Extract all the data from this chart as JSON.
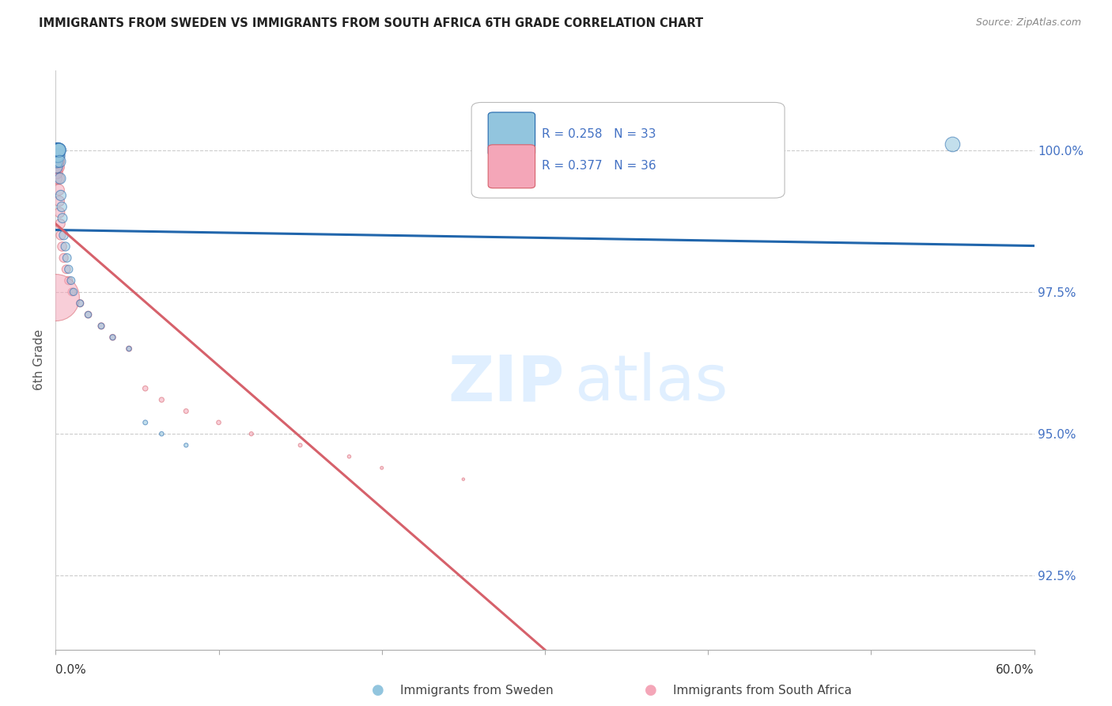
{
  "title": "IMMIGRANTS FROM SWEDEN VS IMMIGRANTS FROM SOUTH AFRICA 6TH GRADE CORRELATION CHART",
  "source": "Source: ZipAtlas.com",
  "ylabel": "6th Grade",
  "xlim": [
    0.0,
    60.0
  ],
  "ylim": [
    91.2,
    101.4
  ],
  "y_ticks": [
    92.5,
    95.0,
    97.5,
    100.0
  ],
  "y_tick_labels": [
    "92.5%",
    "95.0%",
    "97.5%",
    "100.0%"
  ],
  "legend_r_sweden": "0.258",
  "legend_n_sweden": "33",
  "legend_r_southafrica": "0.377",
  "legend_n_southafrica": "36",
  "color_sweden": "#92c5de",
  "color_southafrica": "#f4a6b8",
  "trendline_color_sweden": "#2166ac",
  "trendline_color_southafrica": "#d6616b",
  "sweden_x": [
    0.05,
    0.07,
    0.08,
    0.1,
    0.11,
    0.12,
    0.13,
    0.14,
    0.15,
    0.17,
    0.18,
    0.2,
    0.22,
    0.25,
    0.28,
    0.32,
    0.38,
    0.42,
    0.5,
    0.6,
    0.7,
    0.8,
    0.95,
    1.1,
    1.5,
    2.0,
    2.8,
    3.5,
    4.5,
    5.5,
    6.5,
    8.0,
    55.0
  ],
  "sweden_y": [
    99.7,
    99.8,
    99.9,
    100.0,
    100.0,
    100.0,
    100.0,
    99.9,
    99.9,
    100.0,
    100.0,
    100.0,
    100.0,
    99.8,
    99.5,
    99.2,
    99.0,
    98.8,
    98.5,
    98.3,
    98.1,
    97.9,
    97.7,
    97.5,
    97.3,
    97.1,
    96.9,
    96.7,
    96.5,
    95.2,
    95.0,
    94.8,
    100.1
  ],
  "sweden_sizes": [
    120,
    130,
    140,
    160,
    170,
    180,
    150,
    140,
    160,
    150,
    170,
    160,
    150,
    120,
    100,
    90,
    80,
    75,
    70,
    65,
    60,
    55,
    50,
    45,
    40,
    35,
    30,
    25,
    20,
    18,
    16,
    14,
    180
  ],
  "sa_x": [
    0.05,
    0.07,
    0.09,
    0.1,
    0.11,
    0.12,
    0.13,
    0.14,
    0.15,
    0.17,
    0.18,
    0.2,
    0.22,
    0.25,
    0.28,
    0.32,
    0.4,
    0.5,
    0.65,
    0.8,
    1.0,
    1.5,
    2.0,
    2.8,
    3.5,
    4.5,
    5.5,
    6.5,
    8.0,
    10.0,
    12.0,
    15.0,
    18.0,
    20.0,
    25.0,
    0.03
  ],
  "sa_y": [
    99.5,
    99.6,
    99.7,
    99.8,
    99.8,
    99.9,
    100.0,
    99.9,
    99.8,
    99.7,
    99.5,
    99.3,
    99.1,
    98.9,
    98.7,
    98.5,
    98.3,
    98.1,
    97.9,
    97.7,
    97.5,
    97.3,
    97.1,
    96.9,
    96.7,
    96.5,
    95.8,
    95.6,
    95.4,
    95.2,
    95.0,
    94.8,
    94.6,
    94.4,
    94.2,
    97.4
  ],
  "sa_sizes": [
    110,
    120,
    130,
    140,
    150,
    160,
    150,
    140,
    130,
    120,
    110,
    100,
    90,
    85,
    80,
    75,
    70,
    65,
    60,
    55,
    50,
    45,
    40,
    35,
    30,
    25,
    22,
    20,
    18,
    16,
    14,
    12,
    10,
    8,
    6,
    1800
  ]
}
